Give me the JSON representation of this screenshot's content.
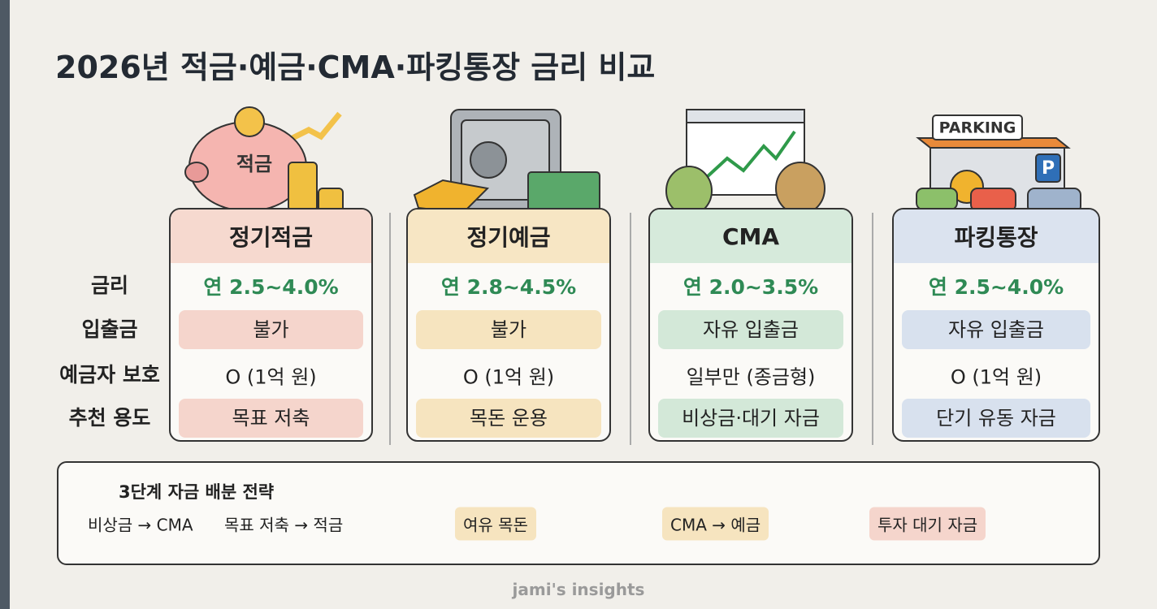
{
  "title": "2026년 적금·예금·CMA·파킹통장 금리 비교",
  "row_labels": [
    "금리",
    "입출금",
    "예금자 보호",
    "추천 용도"
  ],
  "products": [
    {
      "icon_texts": [
        "적금"
      ],
      "name": "정기적금",
      "rate": "연 2.5~4.0%",
      "withdrawal": "불가",
      "protection": "O (1억 원)",
      "purpose": "목표 저축"
    },
    {
      "name": "정기예금",
      "rate": "연 2.8~4.5%",
      "withdrawal": "불가",
      "protection": "O (1억 원)",
      "purpose": "목돈 운용"
    },
    {
      "name": "CMA",
      "rate": "연 2.0~3.5%",
      "withdrawal": "자유 입출금",
      "protection": "일부만 (종금형)",
      "purpose": "비상금·대기 자금"
    },
    {
      "icon_texts": [
        "PARKING",
        "P"
      ],
      "name": "파킹통장",
      "rate": "연 2.5~4.0%",
      "withdrawal": "자유 입출금",
      "protection": "O (1억 원)",
      "purpose": "단기 유동 자금"
    }
  ],
  "strategy": {
    "title": "3단계 자금 배분 전략",
    "items": [
      "비상금 → CMA",
      "목표 저축 → 적금",
      "여유 목돈",
      "CMA → 예금",
      "투자 대기 자금"
    ]
  },
  "footer": "jami's insights"
}
